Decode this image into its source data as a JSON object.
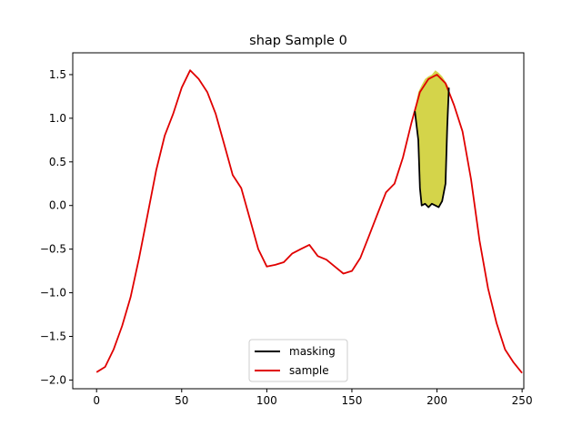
{
  "chart_data": {
    "type": "line",
    "title": "shap Sample 0",
    "xlabel": "",
    "ylabel": "",
    "xlim": [
      -14,
      251
    ],
    "ylim": [
      -2.1,
      1.75
    ],
    "x_ticks": [
      0,
      50,
      100,
      150,
      200,
      250
    ],
    "y_ticks": [
      -2.0,
      -1.5,
      -1.0,
      -0.5,
      0.0,
      0.5,
      1.0,
      1.5
    ],
    "grid": false,
    "legend_position": "lower center",
    "colors": {
      "masking": "#000000",
      "sample": "#e00000",
      "fill": "#d4d44a"
    },
    "series": [
      {
        "name": "sample",
        "points": [
          [
            0,
            -1.91
          ],
          [
            5,
            -1.85
          ],
          [
            10,
            -1.65
          ],
          [
            15,
            -1.38
          ],
          [
            20,
            -1.05
          ],
          [
            25,
            -0.6
          ],
          [
            30,
            -0.1
          ],
          [
            35,
            0.4
          ],
          [
            40,
            0.8
          ],
          [
            45,
            1.05
          ],
          [
            50,
            1.35
          ],
          [
            55,
            1.55
          ],
          [
            60,
            1.45
          ],
          [
            65,
            1.3
          ],
          [
            70,
            1.05
          ],
          [
            75,
            0.7
          ],
          [
            80,
            0.35
          ],
          [
            85,
            0.2
          ],
          [
            90,
            -0.15
          ],
          [
            95,
            -0.5
          ],
          [
            100,
            -0.7
          ],
          [
            105,
            -0.68
          ],
          [
            110,
            -0.65
          ],
          [
            115,
            -0.55
          ],
          [
            120,
            -0.5
          ],
          [
            125,
            -0.45
          ],
          [
            130,
            -0.58
          ],
          [
            135,
            -0.62
          ],
          [
            140,
            -0.7
          ],
          [
            145,
            -0.78
          ],
          [
            150,
            -0.75
          ],
          [
            155,
            -0.6
          ],
          [
            160,
            -0.35
          ],
          [
            165,
            -0.1
          ],
          [
            170,
            0.15
          ],
          [
            175,
            0.25
          ],
          [
            180,
            0.55
          ],
          [
            185,
            0.95
          ],
          [
            190,
            1.3
          ],
          [
            195,
            1.45
          ],
          [
            200,
            1.5
          ],
          [
            205,
            1.4
          ],
          [
            210,
            1.15
          ],
          [
            215,
            0.85
          ],
          [
            220,
            0.3
          ],
          [
            225,
            -0.4
          ],
          [
            230,
            -0.95
          ],
          [
            235,
            -1.35
          ],
          [
            240,
            -1.65
          ],
          [
            245,
            -1.8
          ],
          [
            250,
            -1.92
          ]
        ]
      },
      {
        "name": "masking",
        "points": [
          [
            187,
            1.08
          ],
          [
            189,
            0.75
          ],
          [
            190,
            0.2
          ],
          [
            191,
            0.0
          ],
          [
            193,
            0.02
          ],
          [
            195,
            -0.02
          ],
          [
            197,
            0.02
          ],
          [
            199,
            0.0
          ],
          [
            201,
            -0.02
          ],
          [
            203,
            0.05
          ],
          [
            205,
            0.25
          ],
          [
            206,
            0.9
          ],
          [
            207,
            1.35
          ]
        ]
      }
    ],
    "fill_between": {
      "x": [
        187,
        189,
        191,
        193,
        195,
        197,
        199,
        201,
        203,
        205,
        207
      ],
      "upper": [
        1.1,
        1.3,
        1.38,
        1.45,
        1.48,
        1.5,
        1.55,
        1.52,
        1.48,
        1.42,
        1.35
      ],
      "lower": [
        1.08,
        0.75,
        0.0,
        0.02,
        -0.02,
        0.02,
        0.0,
        -0.02,
        0.05,
        0.25,
        1.35
      ]
    }
  }
}
